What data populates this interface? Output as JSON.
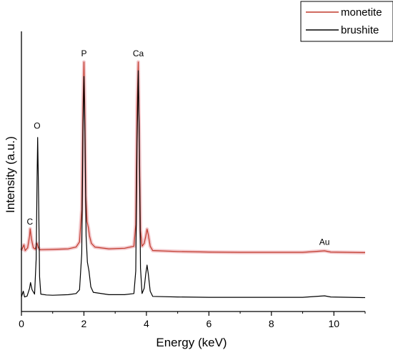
{
  "chart_data": {
    "type": "line",
    "xlabel": "Energy (keV)",
    "ylabel": "Intensity (a.u.)",
    "xlim": [
      0,
      11
    ],
    "x_ticks": [
      0,
      2,
      4,
      6,
      8,
      10
    ],
    "y_ticks_labeled": false,
    "grid": false,
    "legend_position": "top-right",
    "legend": [
      {
        "name": "monetite",
        "color": "#c0392b"
      },
      {
        "name": "brushite",
        "color": "#000000"
      }
    ],
    "series": [
      {
        "name": "monetite",
        "color": "#c0392b",
        "band_color": "#f3c8cc",
        "baseline": 0.21,
        "points": [
          [
            0.0,
            0.21
          ],
          [
            0.08,
            0.23
          ],
          [
            0.12,
            0.21
          ],
          [
            0.2,
            0.22
          ],
          [
            0.26,
            0.26
          ],
          [
            0.28,
            0.285
          ],
          [
            0.32,
            0.25
          ],
          [
            0.38,
            0.22
          ],
          [
            0.44,
            0.215
          ],
          [
            0.48,
            0.23
          ],
          [
            0.5,
            0.235
          ],
          [
            0.54,
            0.22
          ],
          [
            0.6,
            0.213
          ],
          [
            1.0,
            0.214
          ],
          [
            1.5,
            0.216
          ],
          [
            1.75,
            0.222
          ],
          [
            1.86,
            0.24
          ],
          [
            1.93,
            0.35
          ],
          [
            1.97,
            0.7
          ],
          [
            2.0,
            0.86
          ],
          [
            2.03,
            0.68
          ],
          [
            2.06,
            0.4
          ],
          [
            2.1,
            0.31
          ],
          [
            2.14,
            0.29
          ],
          [
            2.18,
            0.26
          ],
          [
            2.24,
            0.235
          ],
          [
            2.35,
            0.222
          ],
          [
            2.8,
            0.216
          ],
          [
            3.3,
            0.218
          ],
          [
            3.6,
            0.225
          ],
          [
            3.66,
            0.3
          ],
          [
            3.7,
            0.7
          ],
          [
            3.74,
            0.86
          ],
          [
            3.77,
            0.6
          ],
          [
            3.81,
            0.28
          ],
          [
            3.86,
            0.225
          ],
          [
            3.93,
            0.235
          ],
          [
            3.98,
            0.26
          ],
          [
            4.02,
            0.284
          ],
          [
            4.06,
            0.265
          ],
          [
            4.12,
            0.225
          ],
          [
            4.2,
            0.21
          ],
          [
            5.0,
            0.207
          ],
          [
            6.0,
            0.205
          ],
          [
            7.0,
            0.204
          ],
          [
            8.0,
            0.204
          ],
          [
            9.0,
            0.204
          ],
          [
            9.7,
            0.209
          ],
          [
            9.9,
            0.205
          ],
          [
            11.0,
            0.203
          ]
        ]
      },
      {
        "name": "brushite",
        "color": "#000000",
        "baseline": 0.05,
        "points": [
          [
            0.0,
            0.05
          ],
          [
            0.06,
            0.07
          ],
          [
            0.1,
            0.05
          ],
          [
            0.18,
            0.053
          ],
          [
            0.26,
            0.08
          ],
          [
            0.29,
            0.1
          ],
          [
            0.34,
            0.075
          ],
          [
            0.42,
            0.06
          ],
          [
            0.47,
            0.18
          ],
          [
            0.5,
            0.46
          ],
          [
            0.52,
            0.6
          ],
          [
            0.55,
            0.4
          ],
          [
            0.58,
            0.12
          ],
          [
            0.62,
            0.06
          ],
          [
            0.8,
            0.057
          ],
          [
            1.0,
            0.056
          ],
          [
            1.5,
            0.058
          ],
          [
            1.75,
            0.062
          ],
          [
            1.86,
            0.075
          ],
          [
            1.93,
            0.2
          ],
          [
            1.97,
            0.62
          ],
          [
            2.0,
            0.81
          ],
          [
            2.03,
            0.62
          ],
          [
            2.07,
            0.26
          ],
          [
            2.11,
            0.17
          ],
          [
            2.16,
            0.14
          ],
          [
            2.22,
            0.085
          ],
          [
            2.3,
            0.066
          ],
          [
            2.8,
            0.058
          ],
          [
            3.3,
            0.058
          ],
          [
            3.6,
            0.062
          ],
          [
            3.66,
            0.14
          ],
          [
            3.7,
            0.58
          ],
          [
            3.74,
            0.83
          ],
          [
            3.77,
            0.6
          ],
          [
            3.81,
            0.15
          ],
          [
            3.86,
            0.062
          ],
          [
            3.93,
            0.08
          ],
          [
            3.98,
            0.13
          ],
          [
            4.02,
            0.16
          ],
          [
            4.06,
            0.13
          ],
          [
            4.12,
            0.07
          ],
          [
            4.2,
            0.052
          ],
          [
            5.0,
            0.05
          ],
          [
            6.0,
            0.049
          ],
          [
            7.0,
            0.049
          ],
          [
            8.0,
            0.049
          ],
          [
            9.0,
            0.049
          ],
          [
            9.7,
            0.054
          ],
          [
            9.9,
            0.05
          ],
          [
            11.0,
            0.048
          ]
        ]
      }
    ],
    "annotations": [
      {
        "text": "C",
        "x": 0.27,
        "y": 0.3
      },
      {
        "text": "O",
        "x": 0.5,
        "y": 0.63
      },
      {
        "text": "P",
        "x": 2.0,
        "y": 0.88
      },
      {
        "text": "Ca",
        "x": 3.74,
        "y": 0.88
      },
      {
        "text": "Au",
        "x": 9.7,
        "y": 0.23
      }
    ]
  }
}
